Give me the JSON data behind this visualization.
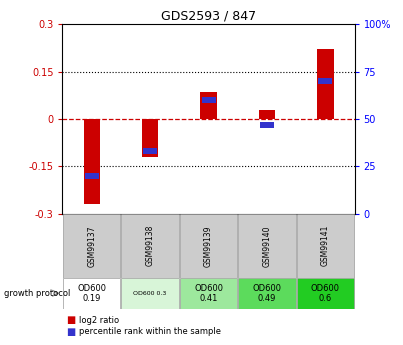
{
  "title": "GDS2593 / 847",
  "samples": [
    "GSM99137",
    "GSM99138",
    "GSM99139",
    "GSM99140",
    "GSM99141"
  ],
  "log2_ratio": [
    -0.27,
    -0.12,
    0.085,
    0.03,
    0.22
  ],
  "percentile_rank": [
    20,
    33,
    60,
    47,
    70
  ],
  "ylim_left": [
    -0.3,
    0.3
  ],
  "ylim_right": [
    0,
    100
  ],
  "yticks_left": [
    -0.3,
    -0.15,
    0,
    0.15,
    0.3
  ],
  "yticks_right": [
    0,
    25,
    50,
    75,
    100
  ],
  "bar_color_red": "#cc0000",
  "bar_color_blue": "#3333cc",
  "dashed_line_color": "#cc0000",
  "dotted_line_color": "#000000",
  "growth_protocol_labels": [
    "OD600\n0.19",
    "OD600 0.3",
    "OD600\n0.41",
    "OD600\n0.49",
    "OD600\n0.6"
  ],
  "protocol_colors": [
    "#ffffff",
    "#d8f5d8",
    "#9de89d",
    "#5cdb5c",
    "#22cc22"
  ],
  "sample_bg": "#cccccc",
  "legend_red": "log2 ratio",
  "legend_blue": "percentile rank within the sample"
}
